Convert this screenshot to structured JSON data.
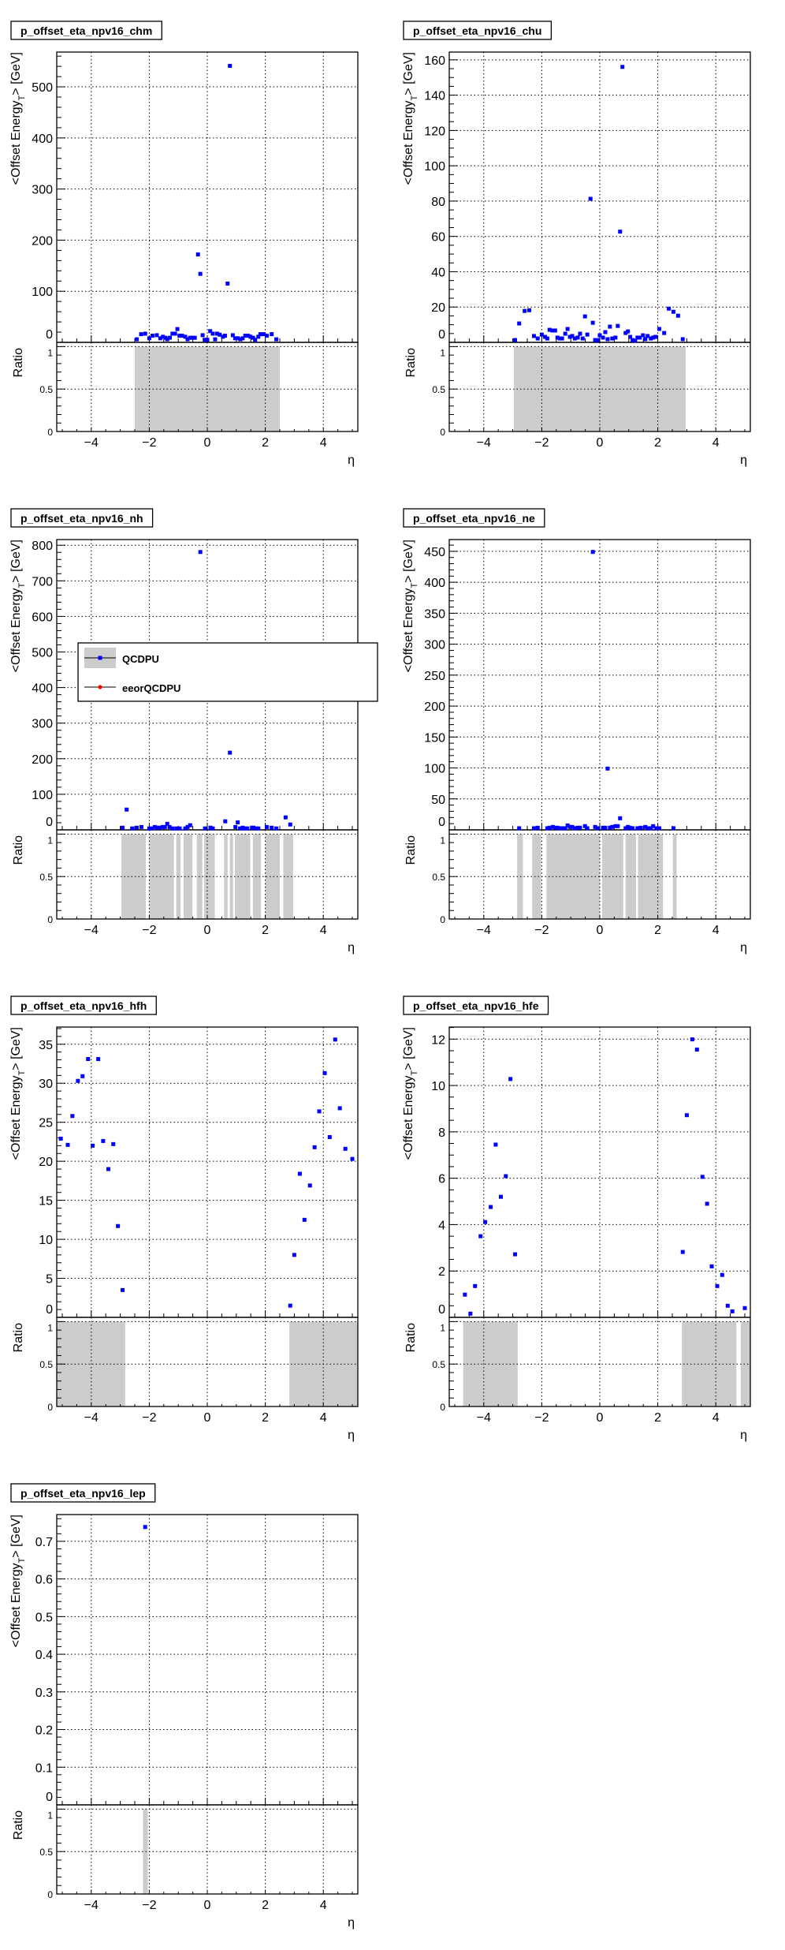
{
  "labels": {
    "ylabel_main": "<Offset Energy",
    "ylabel_sub": "T",
    "ylabel_tail": "> [GeV]",
    "ylabel_ratio": "Ratio",
    "xlabel": "η"
  },
  "legend": {
    "entries": [
      {
        "label": "QCDPU",
        "marker_color": "#0000ff",
        "fill_color": "#cccccc",
        "marker": "square"
      },
      {
        "label": "eeorQCDPU",
        "marker_color": "#ff0000",
        "marker": "circle"
      }
    ]
  },
  "colors": {
    "marker": "#0000ff",
    "band": "#cccccc"
  },
  "x_axis": {
    "xlim": [
      -5.19,
      5.19
    ],
    "ticks": [
      {
        "v": -4,
        "label": "−4"
      },
      {
        "v": -2,
        "label": "−2"
      },
      {
        "v": 0,
        "label": "0"
      },
      {
        "v": 2,
        "label": "2"
      },
      {
        "v": 4,
        "label": "4"
      }
    ],
    "minor_step": 0.5
  },
  "ratio_axis": {
    "ylim": [
      0,
      1.05
    ],
    "ticks": [
      {
        "v": 0,
        "label": "0"
      },
      {
        "v": 0.5,
        "label": "0.5"
      },
      {
        "v": 1,
        "label": "1"
      }
    ],
    "minor_step": 0.1
  },
  "chart_data": [
    {
      "type": "scatter",
      "title": "p_offset_eta_npv16_chm",
      "ylim": [
        0,
        568
      ],
      "y_step": 100,
      "y_minor": 20,
      "y_decimals": 0,
      "grid": true,
      "points": [
        [
          -2.43,
          6
        ],
        [
          -2.28,
          16
        ],
        [
          -2.14,
          17
        ],
        [
          -2.0,
          8
        ],
        [
          -1.89,
          13
        ],
        [
          -1.74,
          14
        ],
        [
          -1.62,
          8
        ],
        [
          -1.53,
          11
        ],
        [
          -1.44,
          9
        ],
        [
          -1.38,
          6
        ],
        [
          -1.29,
          9
        ],
        [
          -1.2,
          17
        ],
        [
          -1.11,
          17
        ],
        [
          -1.03,
          26
        ],
        [
          -0.96,
          13
        ],
        [
          -0.87,
          13
        ],
        [
          -0.76,
          11
        ],
        [
          -0.68,
          6
        ],
        [
          -0.59,
          9
        ],
        [
          -0.51,
          9
        ],
        [
          -0.43,
          9
        ],
        [
          -0.32,
          172
        ],
        [
          -0.24,
          134
        ],
        [
          -0.16,
          14
        ],
        [
          -0.09,
          5
        ],
        [
          0,
          5
        ],
        [
          0.1,
          22
        ],
        [
          0.19,
          17
        ],
        [
          0.27,
          6
        ],
        [
          0.34,
          17
        ],
        [
          0.43,
          15
        ],
        [
          0.54,
          11
        ],
        [
          0.61,
          13
        ],
        [
          0.7,
          115
        ],
        [
          0.78,
          541
        ],
        [
          0.88,
          14
        ],
        [
          0.96,
          8
        ],
        [
          1.05,
          8
        ],
        [
          1.14,
          6
        ],
        [
          1.22,
          8
        ],
        [
          1.31,
          13
        ],
        [
          1.41,
          13
        ],
        [
          1.49,
          11
        ],
        [
          1.58,
          9
        ],
        [
          1.65,
          5
        ],
        [
          1.76,
          11
        ],
        [
          1.83,
          16
        ],
        [
          1.94,
          16
        ],
        [
          2.05,
          13
        ],
        [
          2.22,
          16
        ],
        [
          2.38,
          6
        ]
      ],
      "ratio_bands": [
        [
          -2.5,
          2.5,
          1
        ]
      ]
    },
    {
      "type": "scatter",
      "title": "p_offset_eta_npv16_chu",
      "ylim": [
        0,
        164.4
      ],
      "y_step": 20,
      "y_minor": 5,
      "y_decimals": 0,
      "grid": true,
      "points": [
        [
          -2.92,
          1.3
        ],
        [
          -2.78,
          10.7
        ],
        [
          -2.59,
          17.8
        ],
        [
          -2.43,
          18.2
        ],
        [
          -2.27,
          3.6
        ],
        [
          -2.14,
          2.2
        ],
        [
          -2.0,
          4.4
        ],
        [
          -1.89,
          3.1
        ],
        [
          -1.81,
          2.2
        ],
        [
          -1.73,
          7.1
        ],
        [
          -1.63,
          6.7
        ],
        [
          -1.54,
          6.7
        ],
        [
          -1.46,
          2.7
        ],
        [
          -1.38,
          2.2
        ],
        [
          -1.3,
          2.2
        ],
        [
          -1.19,
          4.9
        ],
        [
          -1.11,
          7.6
        ],
        [
          -1.03,
          3.1
        ],
        [
          -0.95,
          3.6
        ],
        [
          -0.86,
          2.2
        ],
        [
          -0.76,
          2.7
        ],
        [
          -0.68,
          4.9
        ],
        [
          -0.59,
          2.2
        ],
        [
          -0.51,
          14.7
        ],
        [
          -0.43,
          4.4
        ],
        [
          -0.32,
          81.3
        ],
        [
          -0.24,
          11.1
        ],
        [
          -0.16,
          1.3
        ],
        [
          -0.08,
          1.3
        ],
        [
          0,
          4
        ],
        [
          0.11,
          2.7
        ],
        [
          0.19,
          5.8
        ],
        [
          0.27,
          1.8
        ],
        [
          0.35,
          8.9
        ],
        [
          0.43,
          2.2
        ],
        [
          0.54,
          2.7
        ],
        [
          0.62,
          9.3
        ],
        [
          0.7,
          62.7
        ],
        [
          0.78,
          156
        ],
        [
          0.89,
          5.3
        ],
        [
          0.97,
          6.2
        ],
        [
          1.05,
          3.1
        ],
        [
          1.13,
          1.3
        ],
        [
          1.22,
          0.9
        ],
        [
          1.3,
          2.7
        ],
        [
          1.38,
          2.7
        ],
        [
          1.49,
          4
        ],
        [
          1.57,
          1.8
        ],
        [
          1.65,
          3.6
        ],
        [
          1.76,
          2.2
        ],
        [
          1.84,
          2.7
        ],
        [
          1.92,
          3.1
        ],
        [
          2.05,
          7.6
        ],
        [
          2.22,
          5.3
        ],
        [
          2.38,
          19.1
        ],
        [
          2.54,
          17.3
        ],
        [
          2.7,
          15.1
        ],
        [
          2.86,
          1.8
        ]
      ],
      "ratio_bands": [
        [
          -2.96,
          2.96,
          1
        ]
      ]
    },
    {
      "type": "scatter",
      "title": "p_offset_eta_npv16_nh",
      "ylim": [
        0,
        816
      ],
      "y_step": 100,
      "y_minor": 20,
      "y_decimals": 0,
      "grid": true,
      "points": [
        [
          -2.92,
          6
        ],
        [
          -2.78,
          57
        ],
        [
          -2.59,
          4
        ],
        [
          -2.43,
          6
        ],
        [
          -2.27,
          8
        ],
        [
          -2.0,
          4
        ],
        [
          -1.92,
          4
        ],
        [
          -1.81,
          8
        ],
        [
          -1.73,
          6
        ],
        [
          -1.65,
          6
        ],
        [
          -1.54,
          8
        ],
        [
          -1.46,
          8
        ],
        [
          -1.38,
          17
        ],
        [
          -1.3,
          8
        ],
        [
          -1.19,
          4
        ],
        [
          -1.05,
          4
        ],
        [
          -0.95,
          4
        ],
        [
          -0.76,
          4
        ],
        [
          -0.68,
          8
        ],
        [
          -0.59,
          13
        ],
        [
          -0.24,
          781
        ],
        [
          -0.08,
          4
        ],
        [
          0.11,
          6
        ],
        [
          0.19,
          4
        ],
        [
          0.62,
          24
        ],
        [
          0.78,
          217
        ],
        [
          0.97,
          8
        ],
        [
          1.05,
          21
        ],
        [
          1.13,
          4
        ],
        [
          1.22,
          6
        ],
        [
          1.3,
          4
        ],
        [
          1.38,
          4
        ],
        [
          1.54,
          6
        ],
        [
          1.59,
          6
        ],
        [
          1.68,
          4
        ],
        [
          1.76,
          4
        ],
        [
          2.05,
          8
        ],
        [
          2.22,
          6
        ],
        [
          2.38,
          4
        ],
        [
          2.7,
          35
        ],
        [
          2.86,
          15
        ]
      ],
      "ratio_bands": [
        [
          -2.96,
          -2.12,
          1
        ],
        [
          -2.0,
          -1.15,
          1
        ],
        [
          -1.07,
          -0.92,
          1
        ],
        [
          -0.82,
          -0.51,
          1
        ],
        [
          -0.36,
          -0.17,
          1
        ],
        [
          -0.11,
          0.26,
          1
        ],
        [
          0.58,
          0.7,
          1
        ],
        [
          0.78,
          0.89,
          1
        ],
        [
          0.95,
          1.48,
          1
        ],
        [
          1.57,
          1.85,
          1
        ],
        [
          2.0,
          2.5,
          1
        ],
        [
          2.62,
          2.96,
          1
        ]
      ]
    },
    {
      "type": "scatter",
      "title": "p_offset_eta_npv16_ne",
      "ylim": [
        0,
        469
      ],
      "y_step": 50,
      "y_minor": 10,
      "y_decimals": 0,
      "grid": true,
      "points": [
        [
          -2.78,
          2.6
        ],
        [
          -2.27,
          2.6
        ],
        [
          -2.14,
          3.4
        ],
        [
          -1.81,
          2.6
        ],
        [
          -1.73,
          3.4
        ],
        [
          -1.62,
          4.7
        ],
        [
          -1.54,
          3.4
        ],
        [
          -1.46,
          3.4
        ],
        [
          -1.38,
          2.6
        ],
        [
          -1.3,
          2.6
        ],
        [
          -1.19,
          2.6
        ],
        [
          -1.11,
          7.2
        ],
        [
          -1.03,
          4.7
        ],
        [
          -0.95,
          4.7
        ],
        [
          -0.86,
          2.6
        ],
        [
          -0.76,
          3.4
        ],
        [
          -0.68,
          3.4
        ],
        [
          -0.51,
          6
        ],
        [
          -0.43,
          2.6
        ],
        [
          -0.24,
          449
        ],
        [
          -0.16,
          4.7
        ],
        [
          -0.08,
          2.6
        ],
        [
          0.11,
          3.4
        ],
        [
          0.19,
          3.4
        ],
        [
          0.27,
          99
        ],
        [
          0.35,
          3.4
        ],
        [
          0.43,
          4.7
        ],
        [
          0.54,
          6
        ],
        [
          0.62,
          6
        ],
        [
          0.7,
          18.7
        ],
        [
          0.89,
          2.6
        ],
        [
          0.97,
          4.7
        ],
        [
          1.05,
          3.4
        ],
        [
          1.13,
          2.6
        ],
        [
          1.3,
          2.6
        ],
        [
          1.41,
          3.4
        ],
        [
          1.57,
          4.7
        ],
        [
          1.65,
          2.6
        ],
        [
          1.76,
          2.6
        ],
        [
          1.84,
          6
        ],
        [
          1.95,
          2.6
        ],
        [
          2.05,
          2.6
        ],
        [
          2.54,
          2.6
        ]
      ],
      "ratio_bands": [
        [
          -2.85,
          -2.65,
          1
        ],
        [
          -2.33,
          -2.02,
          1
        ],
        [
          -1.84,
          0,
          1
        ],
        [
          0.08,
          0.81,
          1
        ],
        [
          0.89,
          1.25,
          1
        ],
        [
          1.32,
          2.18,
          1
        ],
        [
          2.52,
          2.65,
          1
        ]
      ]
    },
    {
      "type": "scatter",
      "title": "p_offset_eta_npv16_hfh",
      "ylim": [
        0,
        37.2
      ],
      "y_step": 5,
      "y_minor": 1,
      "y_decimals": 0,
      "grid": true,
      "points": [
        [
          -5.05,
          22.9
        ],
        [
          -4.81,
          22.1
        ],
        [
          -4.65,
          25.8
        ],
        [
          -4.46,
          30.3
        ],
        [
          -4.3,
          30.9
        ],
        [
          -4.11,
          33.1
        ],
        [
          -3.95,
          22.0
        ],
        [
          -3.76,
          33.1
        ],
        [
          -3.59,
          22.6
        ],
        [
          -3.41,
          19.0
        ],
        [
          -3.24,
          22.2
        ],
        [
          -3.08,
          11.7
        ],
        [
          -2.92,
          3.5
        ],
        [
          2.86,
          1.5
        ],
        [
          3.0,
          8.0
        ],
        [
          3.19,
          18.4
        ],
        [
          3.35,
          12.5
        ],
        [
          3.54,
          16.9
        ],
        [
          3.7,
          21.8
        ],
        [
          3.86,
          26.4
        ],
        [
          4.05,
          31.3
        ],
        [
          4.22,
          23.1
        ],
        [
          4.41,
          35.6
        ],
        [
          4.57,
          26.8
        ],
        [
          4.76,
          21.6
        ],
        [
          5.0,
          20.3
        ]
      ],
      "ratio_bands": [
        [
          -5.19,
          -2.83,
          1
        ],
        [
          2.83,
          5.19,
          1
        ]
      ]
    },
    {
      "type": "scatter",
      "title": "p_offset_eta_npv16_hfe",
      "ylim": [
        0,
        12.52
      ],
      "y_step": 2,
      "y_minor": 0.5,
      "y_decimals": 0,
      "grid": true,
      "points": [
        [
          -4.65,
          0.98
        ],
        [
          -4.46,
          0.16
        ],
        [
          -4.3,
          1.35
        ],
        [
          -4.11,
          3.5
        ],
        [
          -3.95,
          4.11
        ],
        [
          -3.76,
          4.76
        ],
        [
          -3.59,
          7.45
        ],
        [
          -3.41,
          5.2
        ],
        [
          -3.24,
          6.09
        ],
        [
          -3.08,
          10.28
        ],
        [
          -2.92,
          2.72
        ],
        [
          2.86,
          2.82
        ],
        [
          3.0,
          8.72
        ],
        [
          3.19,
          11.99
        ],
        [
          3.35,
          11.55
        ],
        [
          3.54,
          6.06
        ],
        [
          3.7,
          4.9
        ],
        [
          3.86,
          2.2
        ],
        [
          4.05,
          1.35
        ],
        [
          4.22,
          1.83
        ],
        [
          4.41,
          0.5
        ],
        [
          4.57,
          0.26
        ],
        [
          5.0,
          0.4
        ]
      ],
      "ratio_bands": [
        [
          -4.71,
          -2.83,
          1
        ],
        [
          2.83,
          4.71,
          1
        ],
        [
          4.86,
          5.19,
          1
        ]
      ]
    },
    {
      "type": "scatter",
      "title": "p_offset_eta_npv16_lep",
      "ylim": [
        0,
        0.771
      ],
      "y_step": 0.1,
      "y_minor": 0.02,
      "y_decimals": 1,
      "grid": true,
      "points": [
        [
          -2.14,
          0.738
        ]
      ],
      "ratio_bands": [
        [
          -2.22,
          -2.05,
          1
        ]
      ]
    }
  ]
}
